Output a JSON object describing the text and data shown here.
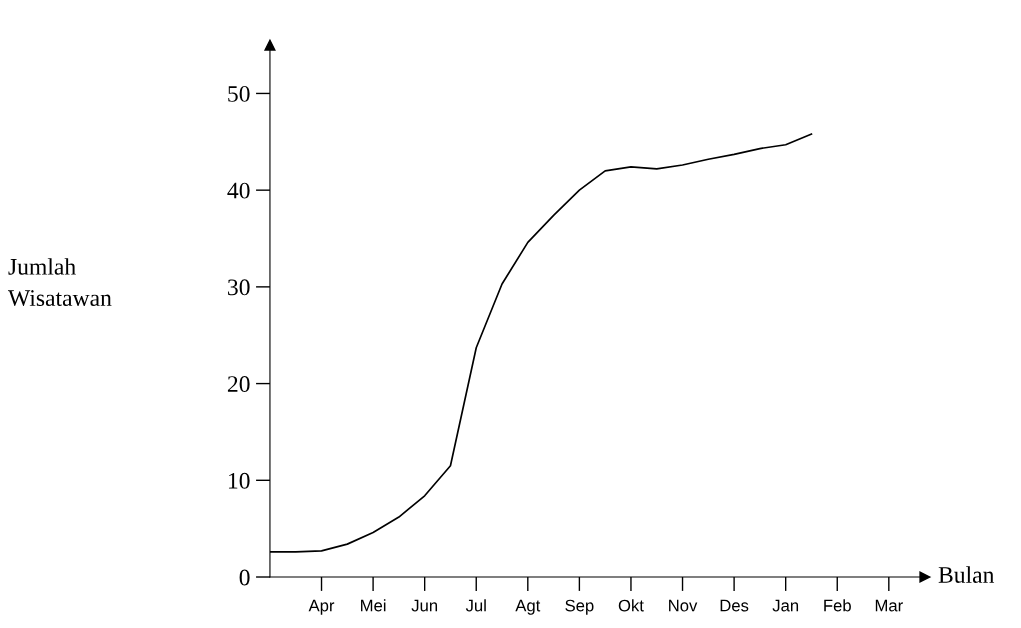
{
  "chart_data": {
    "type": "line",
    "xlabel": "Bulan",
    "ylabel": "Jumlah\nWisatawan",
    "categories": [
      null,
      null,
      "Apr",
      null,
      "Mei",
      null,
      "Jun",
      null,
      "Jul",
      null,
      "Agt",
      null,
      "Sep",
      null,
      "Okt",
      null,
      "Nov",
      null,
      "Des",
      null,
      "Jan",
      null,
      "Feb",
      null,
      "Mar"
    ],
    "values": [
      2.6,
      2.6,
      2.7,
      3.4,
      4.6,
      6.2,
      8.4,
      11.5,
      23.7,
      30.3,
      34.6,
      37.4,
      40,
      42,
      42.4,
      42.2,
      42.6,
      43.2,
      43.7,
      44.3,
      44.7,
      45.8,
      null,
      null,
      null
    ],
    "color": "#000000",
    "line_style": "solid",
    "marker": "none",
    "ylim": [
      0,
      55
    ],
    "yticks": [
      0,
      10,
      20,
      30,
      40,
      50
    ]
  }
}
